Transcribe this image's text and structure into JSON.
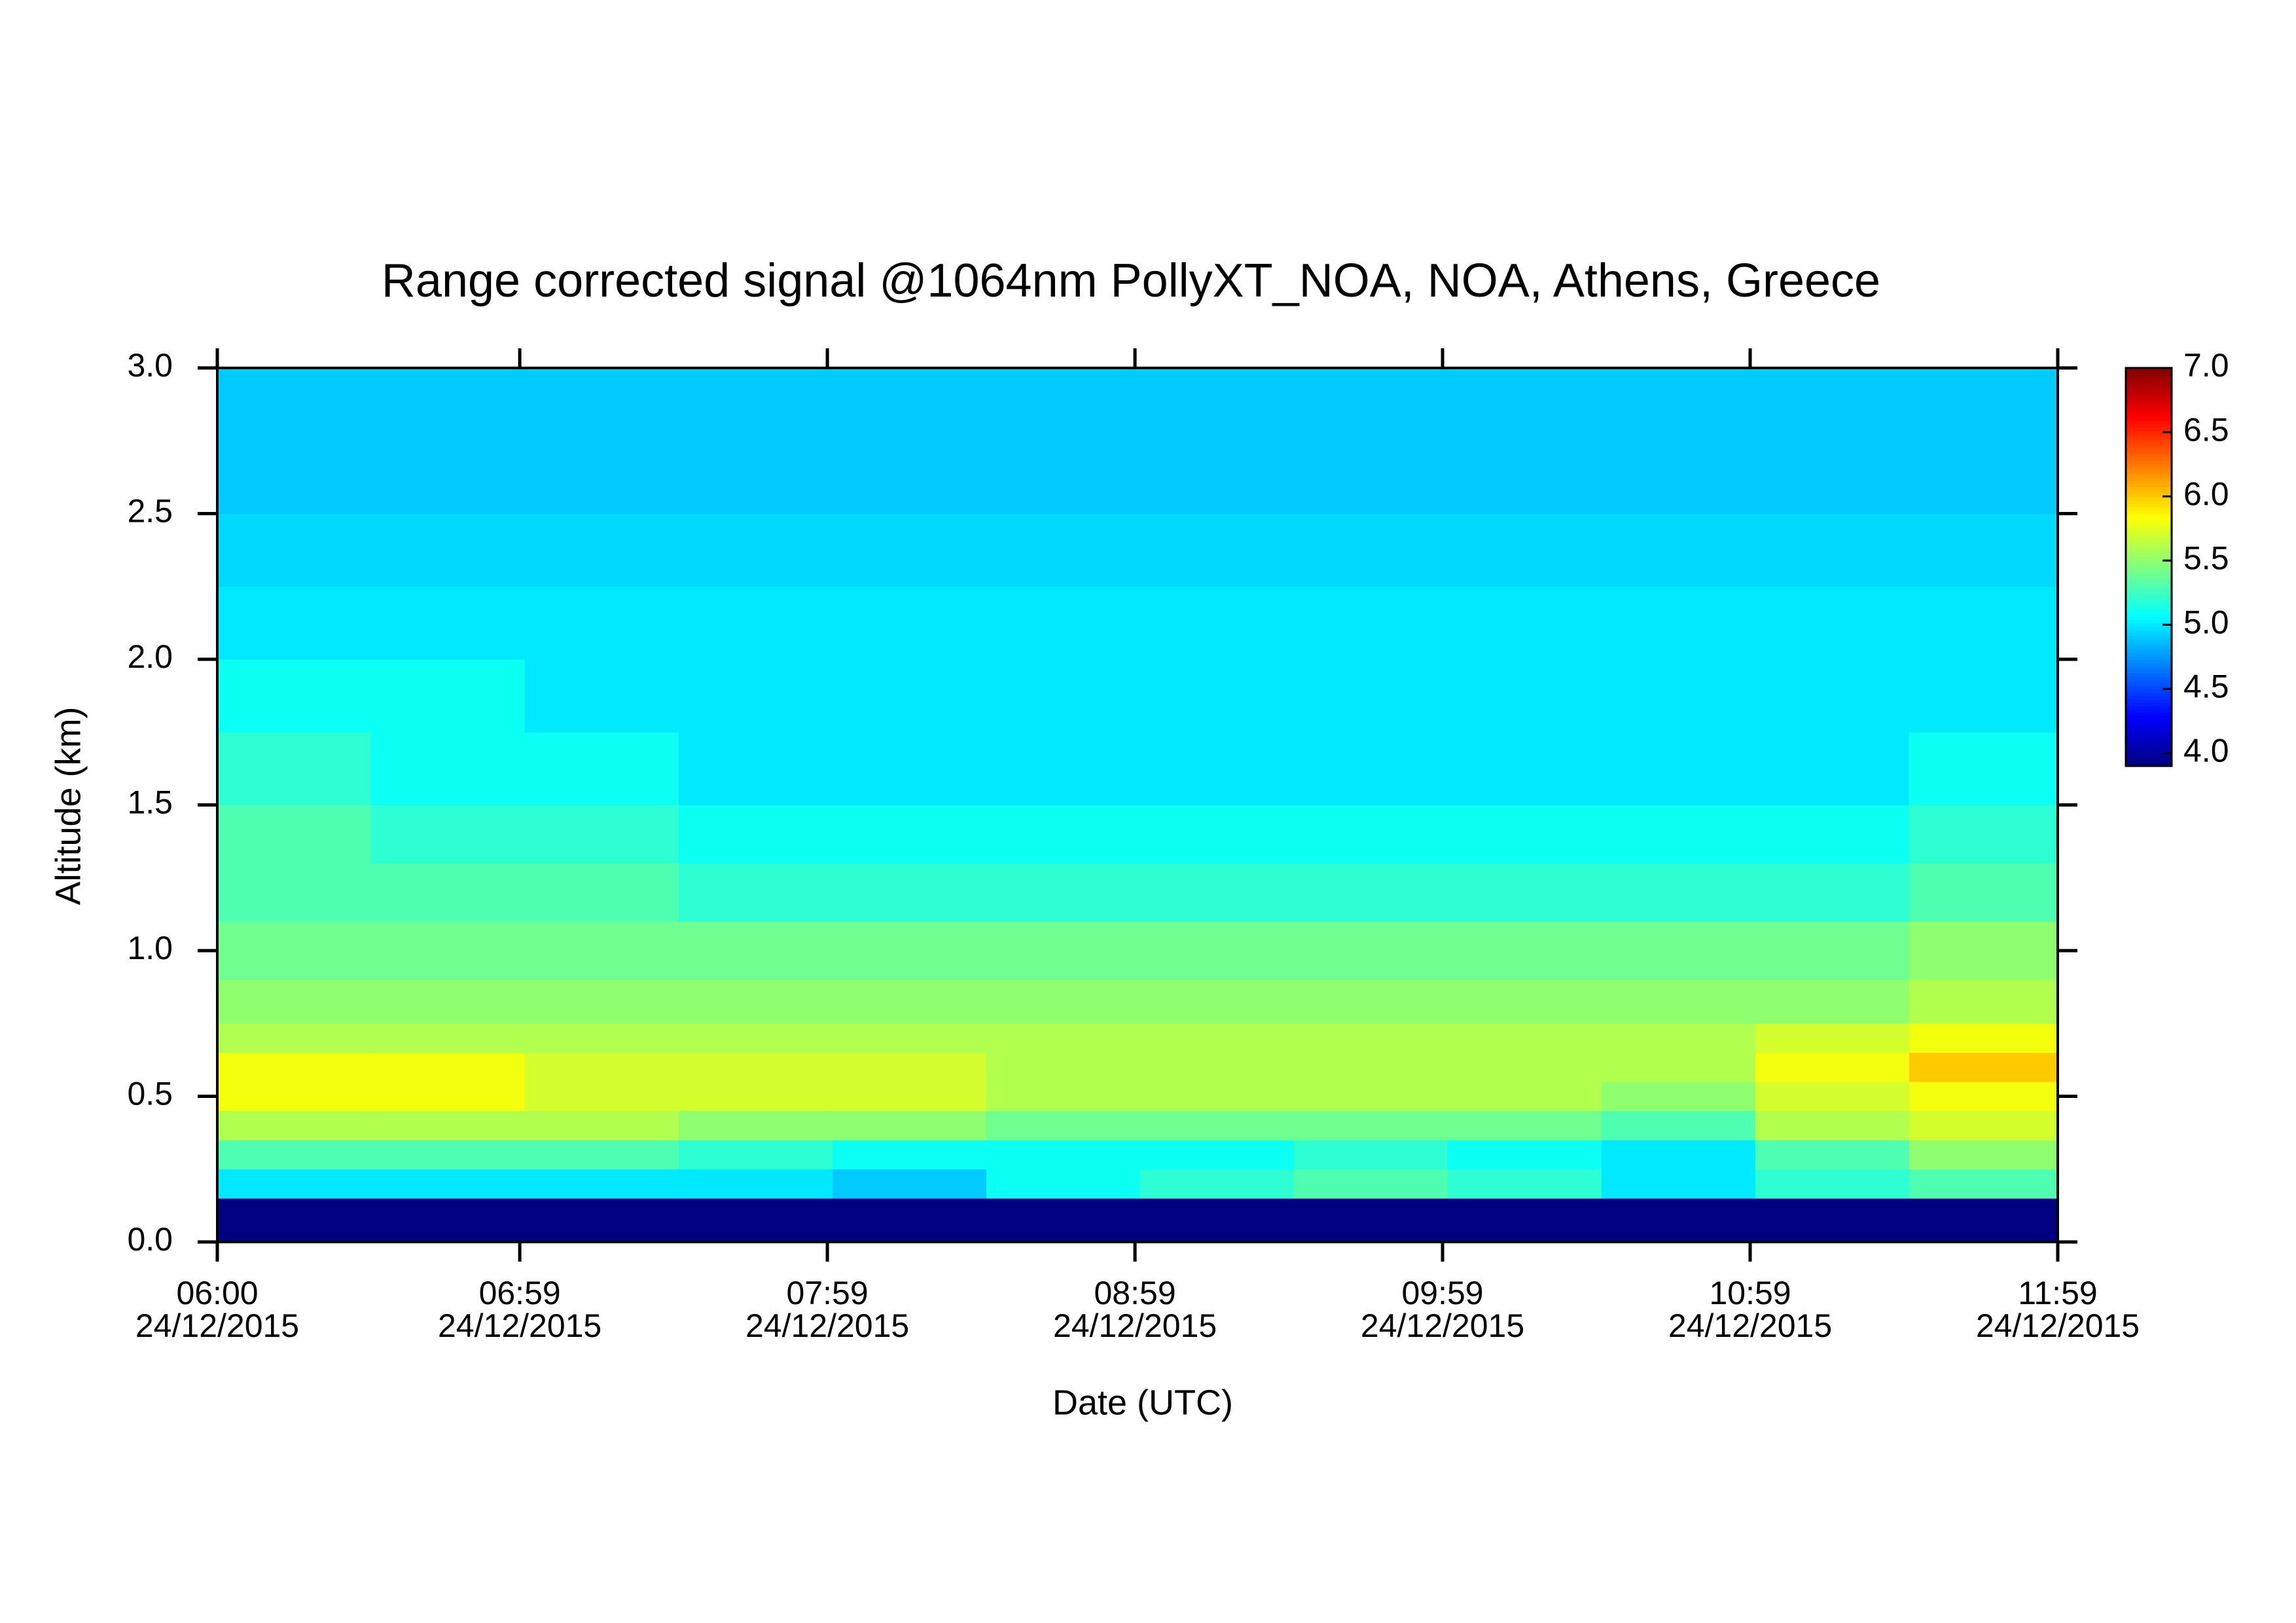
{
  "chart_data": {
    "type": "heatmap",
    "title": "Range corrected signal @1064nm  PollyXT_NOA, NOA, Athens, Greece",
    "x_label": "Date (UTC)",
    "y_label": "Altitude (km)",
    "xlim": [
      6,
      11.9833
    ],
    "ylim": [
      0,
      3.0
    ],
    "xticks": [
      {
        "value": 6,
        "label": [
          "06:00",
          "24/12/2015"
        ]
      },
      {
        "value": 6.9833,
        "label": [
          "06:59",
          "24/12/2015"
        ]
      },
      {
        "value": 7.9833,
        "label": [
          "07:59",
          "24/12/2015"
        ]
      },
      {
        "value": 8.9833,
        "label": [
          "08:59",
          "24/12/2015"
        ]
      },
      {
        "value": 9.9833,
        "label": [
          "09:59",
          "24/12/2015"
        ]
      },
      {
        "value": 10.9833,
        "label": [
          "10:59",
          "24/12/2015"
        ]
      },
      {
        "value": 11.9833,
        "label": [
          "11:59",
          "24/12/2015"
        ]
      }
    ],
    "yticks": [
      {
        "value": 0,
        "label": "0.0"
      },
      0.5,
      {
        "value": 1,
        "label": "1.0"
      },
      1.5,
      {
        "value": 2,
        "label": "2.0"
      },
      2.5,
      {
        "value": 3,
        "label": "3.0"
      }
    ],
    "x_bins": [
      6,
      6.5,
      7,
      7.5,
      8,
      8.5,
      9,
      9.5,
      10,
      10.5,
      11,
      11.5,
      11.9833
    ],
    "y_bins": [
      0,
      0.15,
      0.25,
      0.35,
      0.45,
      0.55,
      0.65,
      0.75,
      0.9,
      1.1,
      1.3,
      1.5,
      1.75,
      2.0,
      2.25,
      2.5,
      2.75,
      3.0
    ],
    "values": [
      [
        3.9,
        3.9,
        3.9,
        3.9,
        3.9,
        3.9,
        3.9,
        3.9,
        3.9,
        3.9,
        3.9,
        3.9
      ],
      [
        5.0,
        5.0,
        5.0,
        5.0,
        4.9,
        5.1,
        5.2,
        5.3,
        5.2,
        5.0,
        5.2,
        5.3
      ],
      [
        5.3,
        5.3,
        5.3,
        5.2,
        5.1,
        5.1,
        5.1,
        5.2,
        5.1,
        5.0,
        5.3,
        5.5
      ],
      [
        5.6,
        5.6,
        5.6,
        5.5,
        5.5,
        5.4,
        5.4,
        5.4,
        5.4,
        5.3,
        5.6,
        5.7
      ],
      [
        5.8,
        5.8,
        5.7,
        5.7,
        5.7,
        5.6,
        5.6,
        5.6,
        5.6,
        5.5,
        5.7,
        5.8
      ],
      [
        5.8,
        5.8,
        5.7,
        5.7,
        5.7,
        5.6,
        5.6,
        5.6,
        5.6,
        5.6,
        5.8,
        6.0
      ],
      [
        5.6,
        5.6,
        5.6,
        5.6,
        5.6,
        5.6,
        5.6,
        5.6,
        5.6,
        5.6,
        5.7,
        5.8
      ],
      [
        5.5,
        5.5,
        5.5,
        5.5,
        5.5,
        5.5,
        5.5,
        5.5,
        5.5,
        5.5,
        5.5,
        5.6
      ],
      [
        5.4,
        5.4,
        5.4,
        5.4,
        5.4,
        5.4,
        5.4,
        5.4,
        5.4,
        5.4,
        5.4,
        5.5
      ],
      [
        5.3,
        5.3,
        5.3,
        5.2,
        5.2,
        5.2,
        5.2,
        5.2,
        5.2,
        5.2,
        5.2,
        5.3
      ],
      [
        5.3,
        5.2,
        5.2,
        5.1,
        5.1,
        5.1,
        5.1,
        5.1,
        5.1,
        5.1,
        5.1,
        5.2
      ],
      [
        5.2,
        5.1,
        5.1,
        5.0,
        5.0,
        5.0,
        5.0,
        5.0,
        5.0,
        5.0,
        5.0,
        5.1
      ],
      [
        5.1,
        5.1,
        5.0,
        5.0,
        5.0,
        5.0,
        5.0,
        5.0,
        5.0,
        5.0,
        5.0,
        5.0
      ],
      [
        5.0,
        5.0,
        5.0,
        5.0,
        5.0,
        5.0,
        5.0,
        5.0,
        5.0,
        5.0,
        5.0,
        5.0
      ],
      [
        4.95,
        4.95,
        4.95,
        4.95,
        4.95,
        4.95,
        4.95,
        4.95,
        4.95,
        4.95,
        4.95,
        4.95
      ],
      [
        4.9,
        4.9,
        4.9,
        4.9,
        4.9,
        4.9,
        4.9,
        4.9,
        4.9,
        4.9,
        4.9,
        4.9
      ],
      [
        4.9,
        4.9,
        4.9,
        4.9,
        4.9,
        4.9,
        4.9,
        4.9,
        4.9,
        4.9,
        4.9,
        4.9
      ]
    ],
    "colormap": "jet",
    "zlim": [
      3.9,
      7.0
    ],
    "zticks": [
      {
        "value": 4,
        "label": "4.0"
      },
      4.5,
      {
        "value": 5,
        "label": "5.0"
      },
      5.5,
      {
        "value": 6,
        "label": "6.0"
      },
      6.5,
      {
        "value": 7,
        "label": "7.0"
      }
    ]
  }
}
